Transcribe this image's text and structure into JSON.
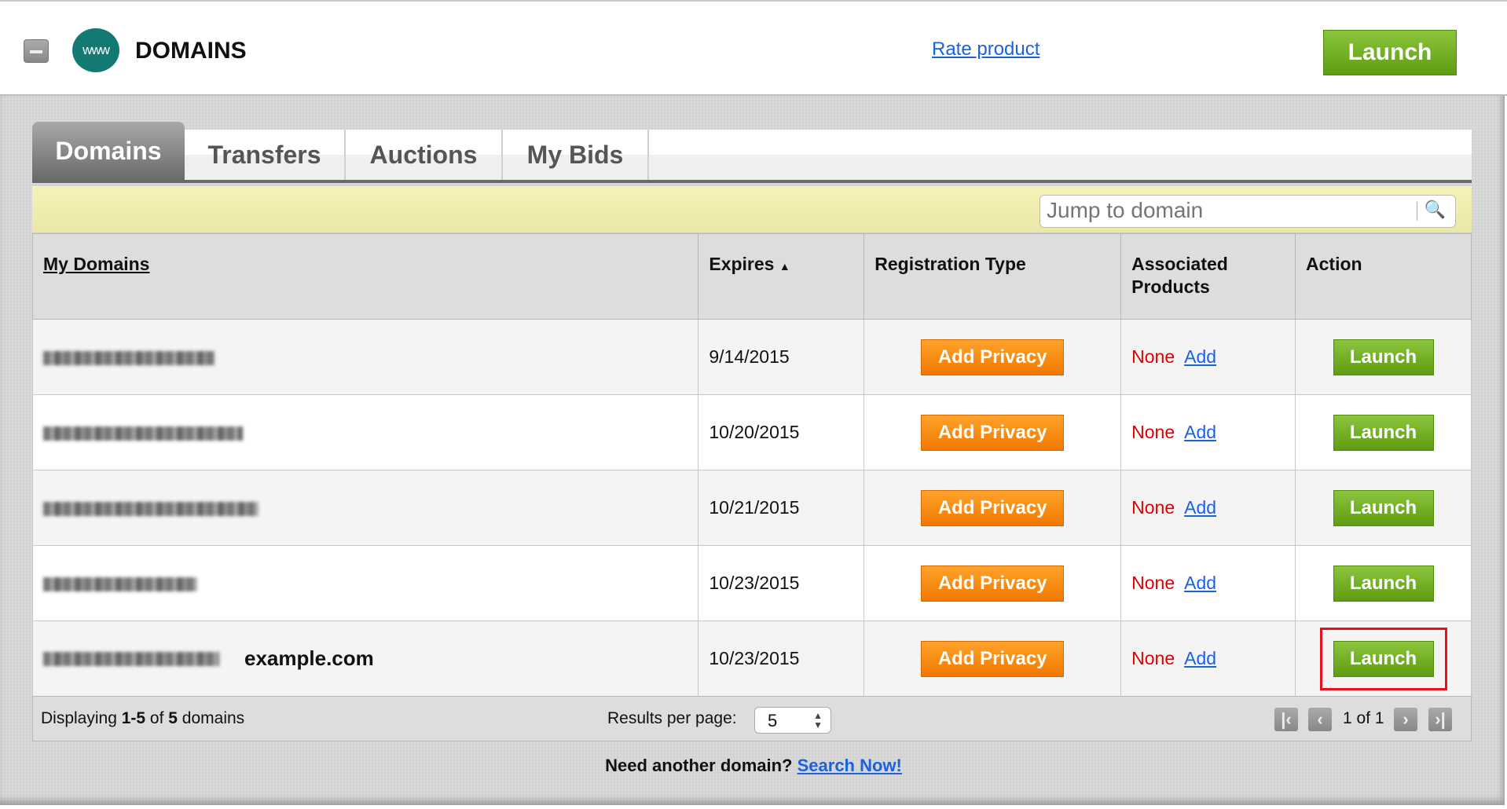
{
  "header": {
    "title": "DOMAINS",
    "logo_text": "www",
    "rate_link": "Rate product",
    "launch": "Launch"
  },
  "tabs": [
    {
      "label": "Domains",
      "active": true
    },
    {
      "label": "Transfers"
    },
    {
      "label": "Auctions"
    },
    {
      "label": "My Bids"
    }
  ],
  "search": {
    "placeholder": "Jump to domain"
  },
  "table": {
    "headers": {
      "domain": "My Domains",
      "expires": "Expires",
      "sort_indicator": "▲",
      "reg_type": "Registration Type",
      "assoc": "Associated Products",
      "action": "Action"
    },
    "rows": [
      {
        "expires": "9/14/2015",
        "reg_button": "Add Privacy",
        "assoc": "None",
        "assoc_link": "Add",
        "action": "Launch"
      },
      {
        "expires": "10/20/2015",
        "reg_button": "Add Privacy",
        "assoc": "None",
        "assoc_link": "Add",
        "action": "Launch"
      },
      {
        "expires": "10/21/2015",
        "reg_button": "Add Privacy",
        "assoc": "None",
        "assoc_link": "Add",
        "action": "Launch"
      },
      {
        "expires": "10/23/2015",
        "reg_button": "Add Privacy",
        "assoc": "None",
        "assoc_link": "Add",
        "action": "Launch"
      },
      {
        "expires": "10/23/2015",
        "annotation": "example.com",
        "reg_button": "Add Privacy",
        "assoc": "None",
        "assoc_link": "Add",
        "action": "Launch",
        "highlighted": true
      }
    ]
  },
  "footer": {
    "displaying_prefix": "Displaying ",
    "range": "1-5",
    "of": " of ",
    "total": "5",
    "suffix": " domains",
    "per_page_label": "Results per page:",
    "per_page_value": "5",
    "page_info": "1 of 1"
  },
  "bottom": {
    "text": "Need another domain? ",
    "link": "Search Now!"
  },
  "colors": {
    "launch_green": "#6aab1c",
    "privacy_orange": "#f58a10",
    "highlight_red": "#e8101a",
    "link_blue": "#1a62e0"
  }
}
